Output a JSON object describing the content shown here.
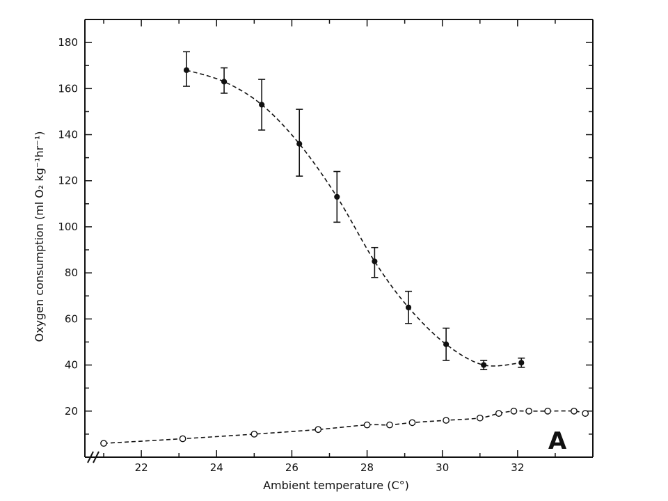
{
  "chart_data": {
    "type": "scatter",
    "title": "",
    "xlabel": "Ambient temperature (C°)",
    "ylabel": "Oxygen consumption (ml O₂ kg⁻¹hr⁻¹)",
    "xlim": [
      20.5,
      34.0
    ],
    "ylim": [
      0,
      190
    ],
    "x_ticks": [
      "22",
      "24",
      "26",
      "28",
      "30",
      "32"
    ],
    "x_tick_values": [
      22,
      24,
      26,
      28,
      30,
      32
    ],
    "y_ticks": [
      "20",
      "40",
      "60",
      "80",
      "100",
      "120",
      "140",
      "160",
      "180"
    ],
    "y_tick_values": [
      20,
      40,
      60,
      80,
      100,
      120,
      140,
      160,
      180
    ],
    "axis_break": true,
    "grid": false,
    "panel_label": "A",
    "series": [
      {
        "marker": "filled-circle",
        "line": "dashed",
        "color": "#111111",
        "x": [
          23.2,
          24.2,
          25.2,
          26.2,
          27.2,
          28.2,
          29.1,
          30.1,
          31.1,
          32.1
        ],
        "y": [
          168,
          163,
          153,
          136,
          113,
          85,
          65,
          49,
          40,
          41
        ],
        "err_low": [
          161,
          158,
          142,
          122,
          102,
          78,
          58,
          42,
          38,
          39
        ],
        "err_high": [
          176,
          169,
          164,
          151,
          124,
          91,
          72,
          56,
          42,
          43
        ]
      },
      {
        "marker": "open-circle",
        "line": "dashed",
        "color": "#111111",
        "x": [
          21.0,
          23.1,
          25.0,
          26.7,
          28.0,
          28.6,
          29.2,
          30.1,
          31.0,
          31.5,
          31.9,
          32.3,
          32.8,
          33.5,
          33.8
        ],
        "y": [
          6,
          8,
          10,
          12,
          14,
          14,
          15,
          16,
          17,
          19,
          20,
          20,
          20,
          20,
          19
        ]
      }
    ]
  }
}
